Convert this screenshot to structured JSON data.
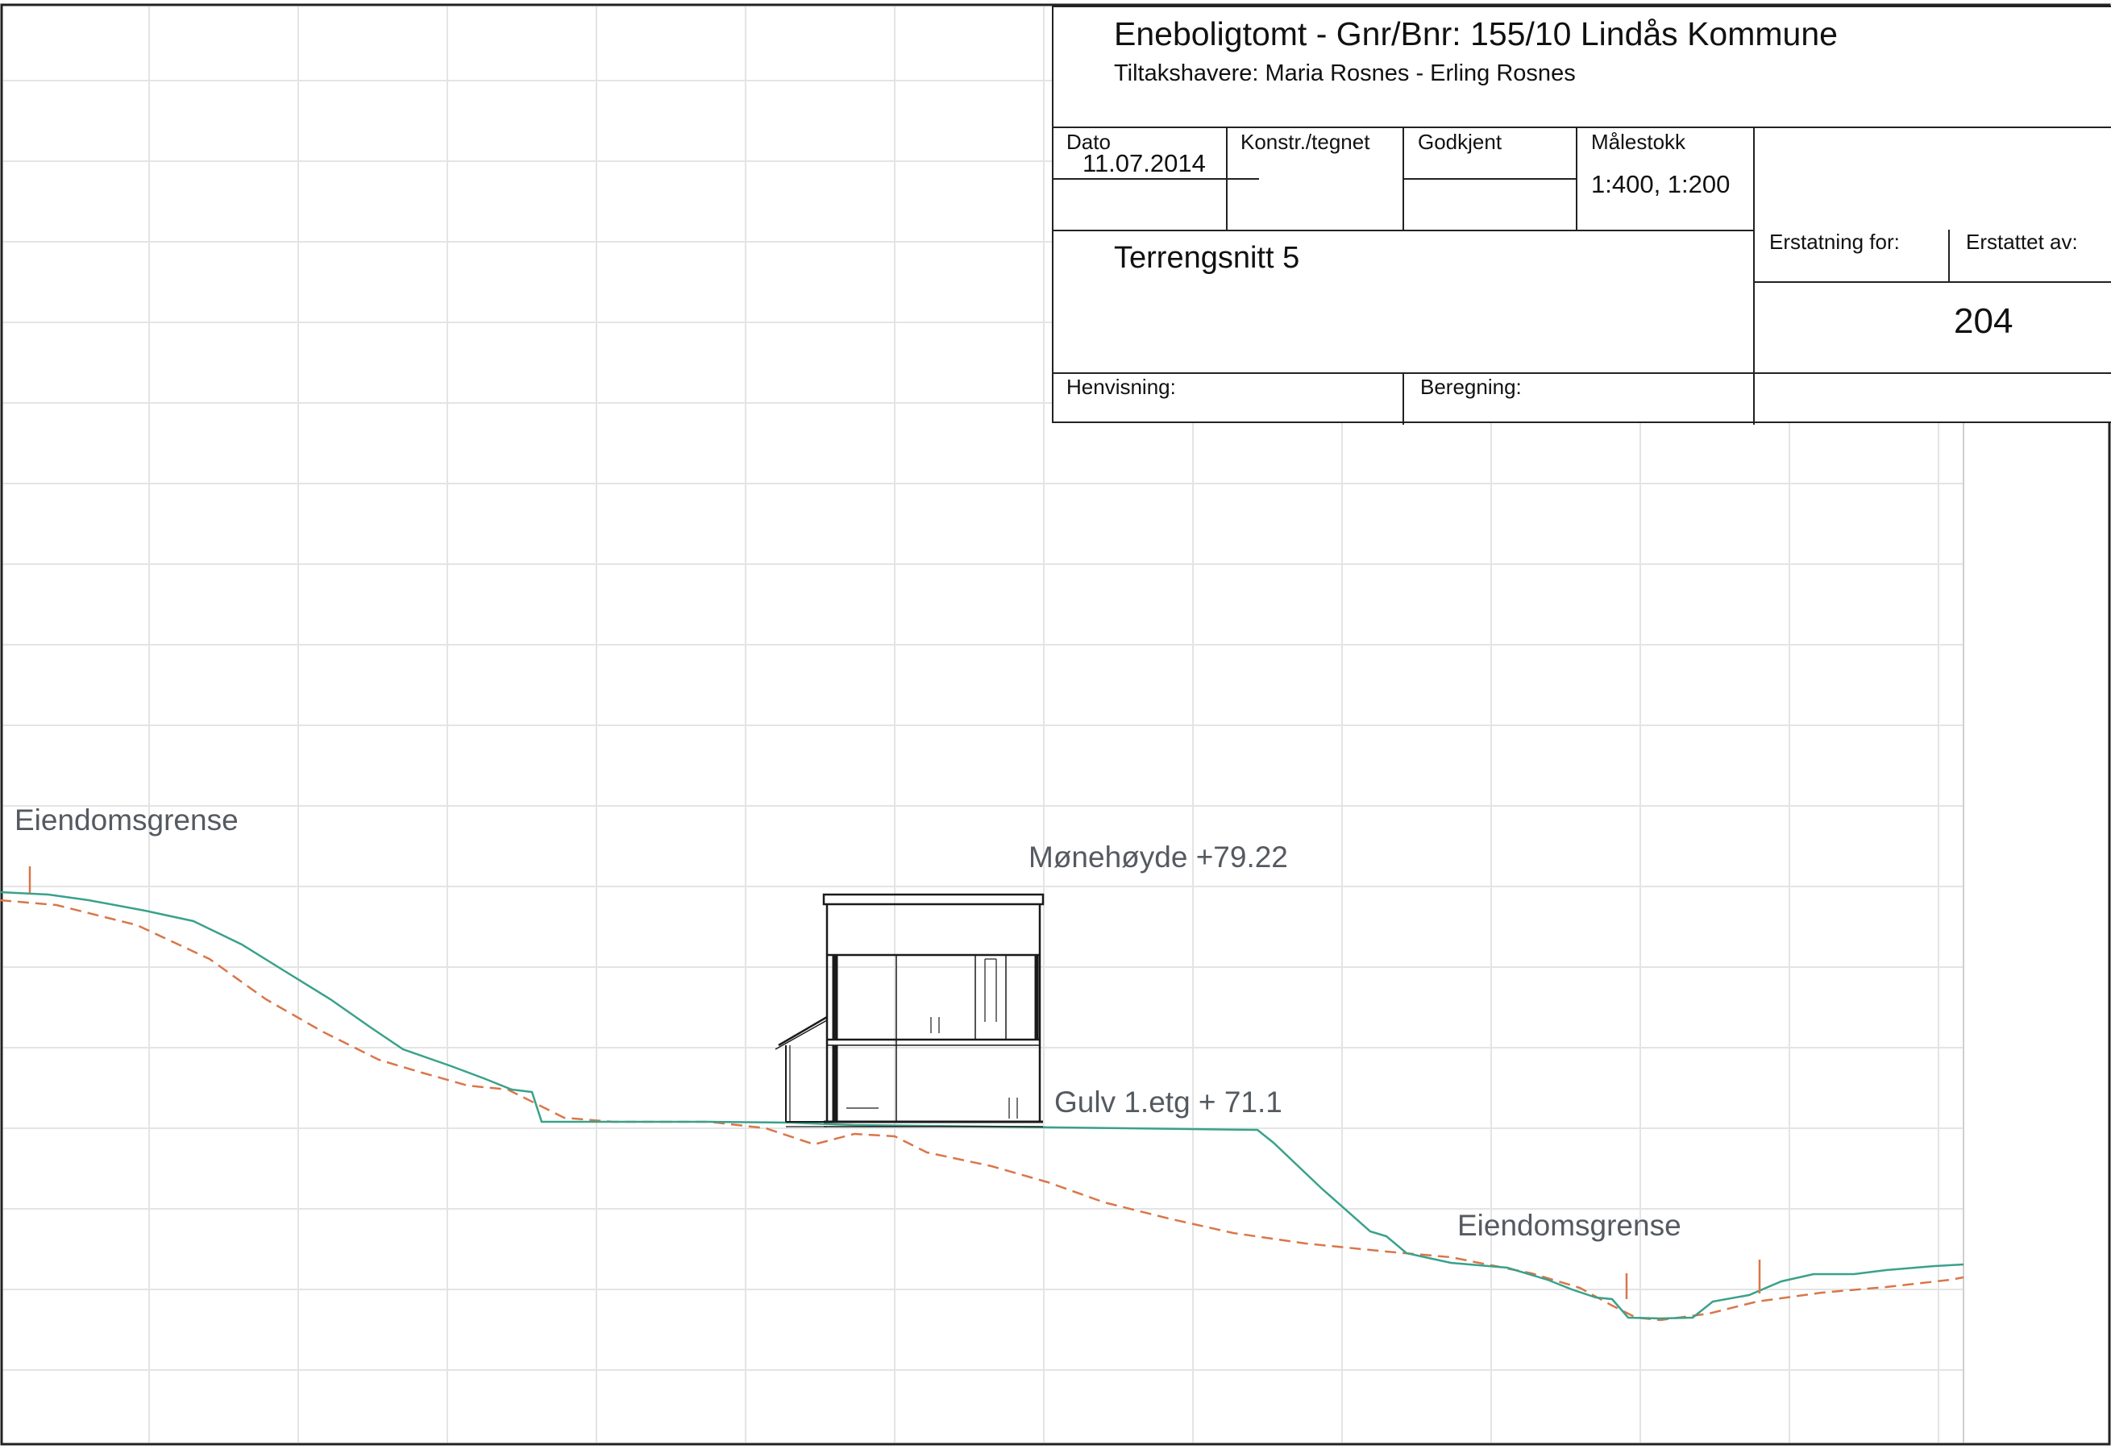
{
  "title_block": {
    "project_title": "Eneboligtomt - Gnr/Bnr: 155/10 Lindås Kommune",
    "clients": "Tiltakshavere: Maria Rosnes - Erling Rosnes",
    "date_label": "Dato",
    "date_value": "11.07.2014",
    "designed_label": "Konstr./tegnet",
    "approved_label": "Godkjent",
    "scale_label": "Målestokk",
    "scale_value": "1:400, 1:200",
    "drawing_title": "Terrengsnitt 5",
    "replaces_label": "Erstatning for:",
    "replaced_by_label": "Erstattet av:",
    "drawing_number": "204",
    "reference_label": "Henvisning:",
    "calculation_label": "Beregning:"
  },
  "annotations": {
    "property_boundary_left": "Eiendomsgrense",
    "property_boundary_right": "Eiendomsgrense",
    "ridge_height": "Mønehøyde +79.22",
    "floor_height": "Gulv 1.etg + 71.1"
  },
  "colors": {
    "new_terrain": "#3aa18a",
    "existing_terrain": "#d9764a",
    "grid": "#e4e4e4",
    "annotation_text": "#555a60",
    "building": "#1a1a1a"
  }
}
